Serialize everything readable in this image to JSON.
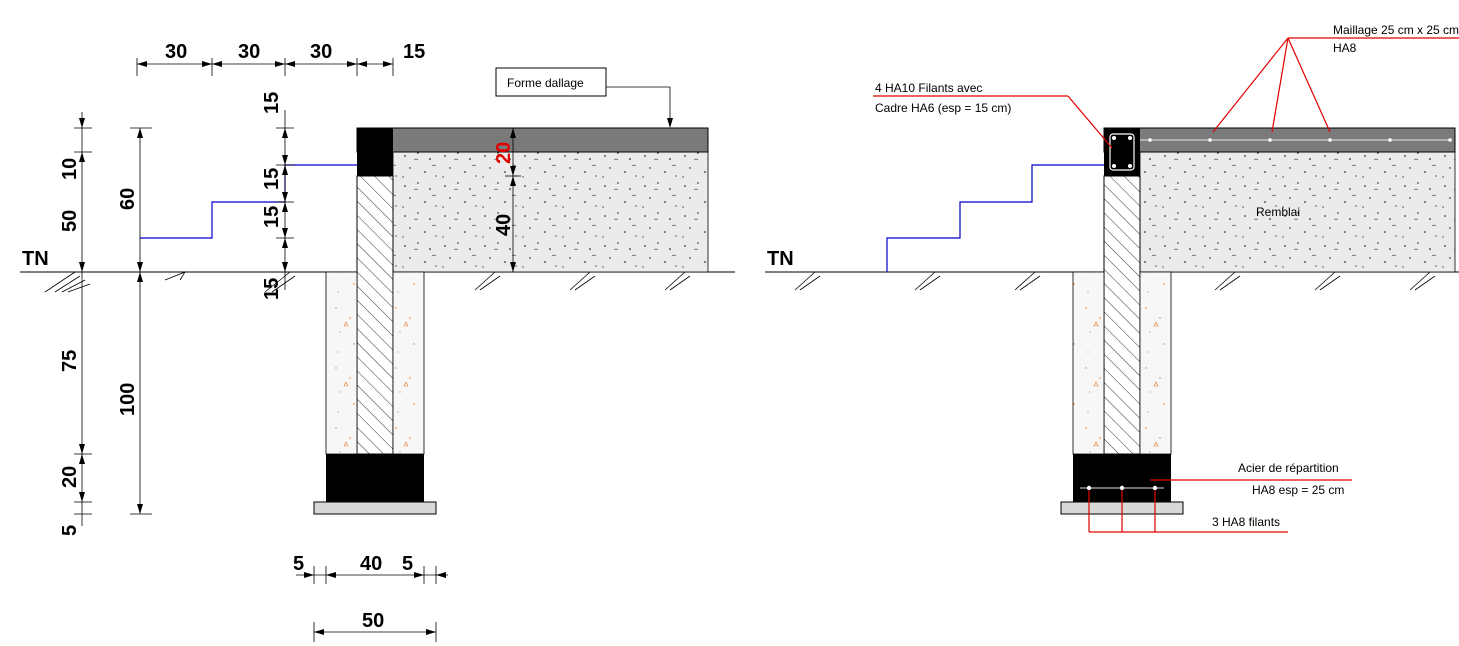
{
  "left": {
    "top_dims": [
      "30",
      "30",
      "30",
      "15"
    ],
    "left_dims": [
      "10",
      "50",
      "75",
      "20",
      "5"
    ],
    "left_overall": [
      "60",
      "100"
    ],
    "mid_dims": [
      "15",
      "15",
      "15",
      "15"
    ],
    "slab_dims": [
      "20",
      "40"
    ],
    "bottom_dims": [
      "5",
      "40",
      "5"
    ],
    "bottom_total": "50",
    "ground_label": "TN",
    "slab_callout": "Forme dallage"
  },
  "right": {
    "ground_label": "TN",
    "mesh_callout": [
      "Maillage 25 cm x  25 cm",
      "HA8"
    ],
    "beam_callout": [
      "4 HA10 Filants avec",
      "Cadre HA6 (esp = 15 cm)"
    ],
    "fill_label": "Remblai",
    "distribution_callout": [
      "Acier de répartition",
      "HA8 esp = 25 cm"
    ],
    "footing_callout": "3 HA8 filants"
  },
  "colors": {
    "concrete": "#ebebeb",
    "slab": "#7a7a7a",
    "step_line": "#0000cc",
    "leader": "#e00000",
    "accent_dim": "#e00000",
    "aggregate_mark": "#e87a2a"
  }
}
